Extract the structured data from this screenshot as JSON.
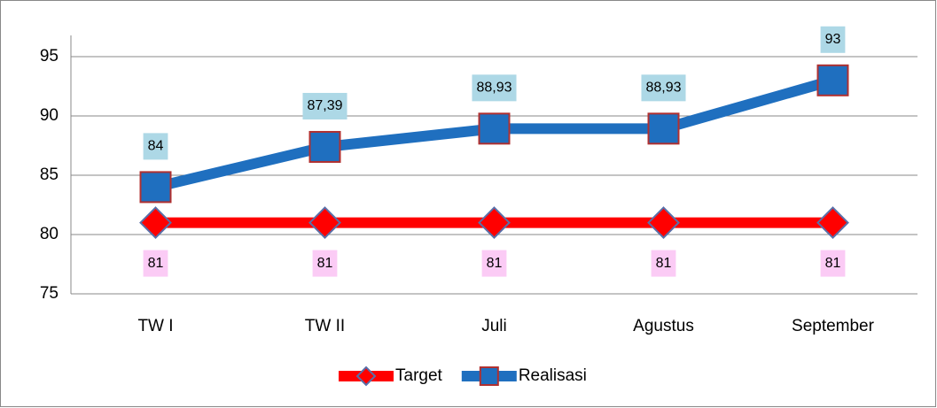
{
  "chart_data": {
    "type": "line",
    "categories": [
      "TW I",
      "TW II",
      "Juli",
      "Agustus",
      "September"
    ],
    "series": [
      {
        "name": "Target",
        "color": "#ff0000",
        "marker": "diamond",
        "values": [
          81,
          81,
          81,
          81,
          81
        ]
      },
      {
        "name": "Realisasi",
        "color": "#1f6fbf",
        "marker": "square",
        "values": [
          84,
          87.39,
          88.93,
          88.93,
          93
        ],
        "value_labels": [
          "84",
          "87,39",
          "88,93",
          "88,93",
          "93"
        ]
      }
    ],
    "ylim": [
      75,
      95
    ],
    "yticks": [
      75,
      80,
      85,
      90,
      95
    ],
    "grid": true,
    "legend": "bottom"
  }
}
